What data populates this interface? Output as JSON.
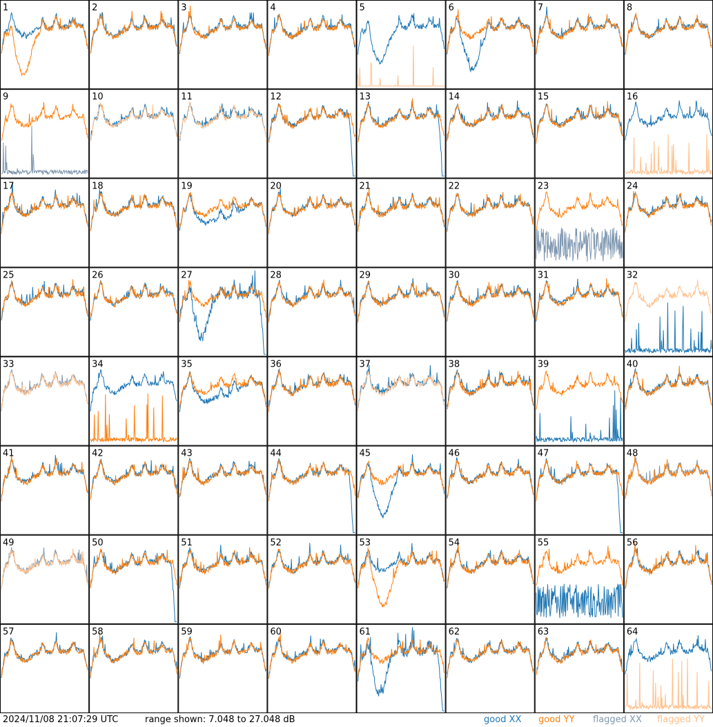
{
  "chart_data": {
    "type": "line",
    "layout": "8x8 small-multiples grid",
    "panels": [
      {
        "id": "1",
        "xx": "good",
        "yy": "good",
        "shape": "dip"
      },
      {
        "id": "2",
        "xx": "good",
        "yy": "good",
        "shape": "normal"
      },
      {
        "id": "3",
        "xx": "good",
        "yy": "good",
        "shape": "normal"
      },
      {
        "id": "4",
        "xx": "good",
        "yy": "good",
        "shape": "normal"
      },
      {
        "id": "5",
        "xx": "good",
        "yy": "flagged",
        "shape": "xx-dip-yy-spikes"
      },
      {
        "id": "6",
        "xx": "good",
        "yy": "good",
        "shape": "xx-dip"
      },
      {
        "id": "7",
        "xx": "good",
        "yy": "good",
        "shape": "normal"
      },
      {
        "id": "8",
        "xx": "good",
        "yy": "good",
        "shape": "normal"
      },
      {
        "id": "9",
        "xx": "flagged",
        "yy": "good",
        "shape": "xx-low-spikes"
      },
      {
        "id": "10",
        "xx": "good",
        "yy": "flagged",
        "shape": "normal"
      },
      {
        "id": "11",
        "xx": "good",
        "yy": "flagged",
        "shape": "normal"
      },
      {
        "id": "12",
        "xx": "good",
        "yy": "good",
        "shape": "drop-end"
      },
      {
        "id": "13",
        "xx": "good",
        "yy": "good",
        "shape": "drop-end"
      },
      {
        "id": "14",
        "xx": "good",
        "yy": "good",
        "shape": "normal"
      },
      {
        "id": "15",
        "xx": "good",
        "yy": "good",
        "shape": "normal"
      },
      {
        "id": "16",
        "xx": "good",
        "yy": "flagged",
        "shape": "yy-low-spikes"
      },
      {
        "id": "17",
        "xx": "good",
        "yy": "good",
        "shape": "normal"
      },
      {
        "id": "18",
        "xx": "good",
        "yy": "good",
        "shape": "normal"
      },
      {
        "id": "19",
        "xx": "good",
        "yy": "good",
        "shape": "xx-lower"
      },
      {
        "id": "20",
        "xx": "good",
        "yy": "good",
        "shape": "normal"
      },
      {
        "id": "21",
        "xx": "good",
        "yy": "good",
        "shape": "normal"
      },
      {
        "id": "22",
        "xx": "good",
        "yy": "good",
        "shape": "normal"
      },
      {
        "id": "23",
        "xx": "flagged",
        "yy": "good",
        "shape": "xx-noisy-low"
      },
      {
        "id": "24",
        "xx": "good",
        "yy": "good",
        "shape": "normal"
      },
      {
        "id": "25",
        "xx": "good",
        "yy": "good",
        "shape": "normal"
      },
      {
        "id": "26",
        "xx": "good",
        "yy": "good",
        "shape": "normal"
      },
      {
        "id": "27",
        "xx": "good",
        "yy": "good",
        "shape": "xx-dip-drop"
      },
      {
        "id": "28",
        "xx": "good",
        "yy": "good",
        "shape": "normal"
      },
      {
        "id": "29",
        "xx": "good",
        "yy": "good",
        "shape": "normal"
      },
      {
        "id": "30",
        "xx": "good",
        "yy": "good",
        "shape": "normal"
      },
      {
        "id": "31",
        "xx": "good",
        "yy": "good",
        "shape": "normal"
      },
      {
        "id": "32",
        "xx": "good",
        "yy": "flagged",
        "shape": "xx-low-spikes"
      },
      {
        "id": "33",
        "xx": "flagged",
        "yy": "flagged",
        "shape": "normal"
      },
      {
        "id": "34",
        "xx": "good",
        "yy": "good",
        "shape": "yy-low-spikes"
      },
      {
        "id": "35",
        "xx": "good",
        "yy": "good",
        "shape": "xx-lower"
      },
      {
        "id": "36",
        "xx": "good",
        "yy": "good",
        "shape": "normal"
      },
      {
        "id": "37",
        "xx": "good",
        "yy": "flagged",
        "shape": "normal"
      },
      {
        "id": "38",
        "xx": "good",
        "yy": "good",
        "shape": "normal"
      },
      {
        "id": "39",
        "xx": "good",
        "yy": "good",
        "shape": "xx-low-spikes"
      },
      {
        "id": "40",
        "xx": "good",
        "yy": "good",
        "shape": "normal"
      },
      {
        "id": "41",
        "xx": "good",
        "yy": "good",
        "shape": "normal"
      },
      {
        "id": "42",
        "xx": "good",
        "yy": "good",
        "shape": "normal"
      },
      {
        "id": "43",
        "xx": "good",
        "yy": "good",
        "shape": "normal"
      },
      {
        "id": "44",
        "xx": "good",
        "yy": "good",
        "shape": "drop-end"
      },
      {
        "id": "45",
        "xx": "good",
        "yy": "good",
        "shape": "xx-dip"
      },
      {
        "id": "46",
        "xx": "good",
        "yy": "good",
        "shape": "normal"
      },
      {
        "id": "47",
        "xx": "good",
        "yy": "good",
        "shape": "drop-end"
      },
      {
        "id": "48",
        "xx": "flagged",
        "yy": "good",
        "shape": "normal"
      },
      {
        "id": "49",
        "xx": "flagged",
        "yy": "flagged",
        "shape": "normal"
      },
      {
        "id": "50",
        "xx": "good",
        "yy": "good",
        "shape": "drop-end"
      },
      {
        "id": "51",
        "xx": "good",
        "yy": "good",
        "shape": "normal"
      },
      {
        "id": "52",
        "xx": "good",
        "yy": "good",
        "shape": "normal"
      },
      {
        "id": "53",
        "xx": "good",
        "yy": "good",
        "shape": "yy-dip"
      },
      {
        "id": "54",
        "xx": "good",
        "yy": "good",
        "shape": "normal"
      },
      {
        "id": "55",
        "xx": "good",
        "yy": "good",
        "shape": "xx-noisy-low"
      },
      {
        "id": "56",
        "xx": "good",
        "yy": "good",
        "shape": "normal"
      },
      {
        "id": "57",
        "xx": "good",
        "yy": "good",
        "shape": "normal"
      },
      {
        "id": "58",
        "xx": "good",
        "yy": "good",
        "shape": "normal"
      },
      {
        "id": "59",
        "xx": "good",
        "yy": "good",
        "shape": "normal"
      },
      {
        "id": "60",
        "xx": "good",
        "yy": "good",
        "shape": "normal"
      },
      {
        "id": "61",
        "xx": "good",
        "yy": "good",
        "shape": "xx-dip-drop"
      },
      {
        "id": "62",
        "xx": "good",
        "yy": "good",
        "shape": "normal"
      },
      {
        "id": "63",
        "xx": "good",
        "yy": "good",
        "shape": "normal"
      },
      {
        "id": "64",
        "xx": "good",
        "yy": "flagged",
        "shape": "yy-low-spikes"
      }
    ],
    "colors": {
      "good_xx": "#1f77b4",
      "good_yy": "#ff7f0e",
      "flagged_xx": "#7f97b0",
      "flagged_yy": "#ffbf8a"
    }
  },
  "footer": {
    "timestamp": "2024/11/08 21:07:29 UTC",
    "range": "range shown: 7.048 to 27.048 dB",
    "legend": {
      "good_xx": "good XX",
      "good_yy": "good YY",
      "flagged_xx": "flagged XX",
      "flagged_yy": "flagged YY"
    }
  }
}
